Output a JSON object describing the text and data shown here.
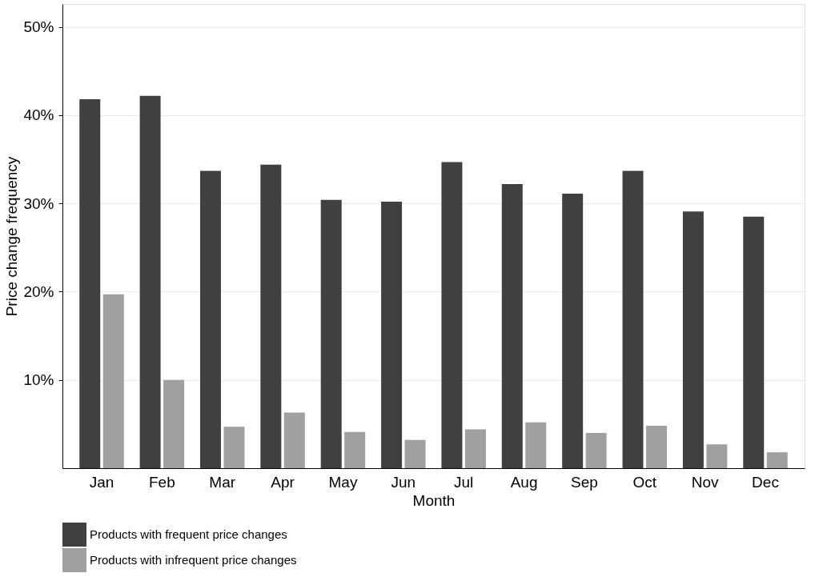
{
  "chart_data": {
    "type": "bar",
    "xlabel": "Month",
    "ylabel": "Price change frequency",
    "categories": [
      "Jan",
      "Feb",
      "Mar",
      "Apr",
      "May",
      "Jun",
      "Jul",
      "Aug",
      "Sep",
      "Oct",
      "Nov",
      "Dec"
    ],
    "series": [
      {
        "name": "Products with frequent price changes",
        "color": "#404040",
        "values": [
          41.8,
          42.2,
          33.7,
          34.4,
          30.4,
          30.2,
          34.7,
          32.2,
          31.1,
          33.7,
          29.1,
          28.5
        ]
      },
      {
        "name": "Products with infrequent price changes",
        "color": "#a0a0a0",
        "values": [
          19.7,
          10.0,
          4.7,
          6.3,
          4.1,
          3.2,
          4.4,
          5.2,
          4.0,
          4.8,
          2.7,
          1.8
        ]
      }
    ],
    "ylim": [
      0,
      52.6
    ],
    "yticks": [
      {
        "value": 10,
        "label": "10%"
      },
      {
        "value": 20,
        "label": "20%"
      },
      {
        "value": 30,
        "label": "30%"
      },
      {
        "value": 40,
        "label": "40%"
      },
      {
        "value": 50,
        "label": "50%"
      }
    ],
    "grid": "y",
    "legend": "bottom"
  }
}
